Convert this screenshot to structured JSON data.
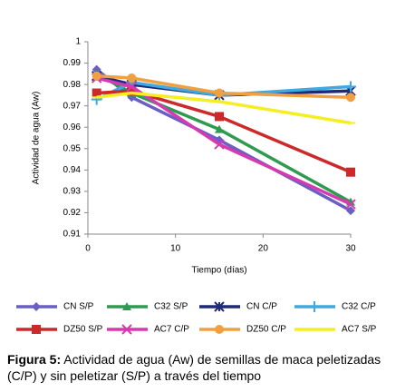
{
  "chart_data": {
    "type": "line",
    "y_label": "Actividad de agua (Aw)",
    "x_label": "Tiempo (días)",
    "x": [
      1,
      5,
      15,
      30
    ],
    "xlim": [
      0,
      30
    ],
    "xticks": [
      0,
      10,
      20,
      30
    ],
    "ylim": [
      0.91,
      1
    ],
    "yticks": [
      0.91,
      0.92,
      0.93,
      0.94,
      0.95,
      0.96,
      0.97,
      0.98,
      0.99,
      1
    ],
    "series": [
      {
        "name": "CN S/P",
        "color": "#6a5fc4",
        "marker": "diamond",
        "values": [
          0.987,
          0.974,
          0.954,
          0.921
        ]
      },
      {
        "name": "C32 S/P",
        "color": "#2e9b4e",
        "marker": "triangle",
        "values": [
          0.985,
          0.976,
          0.959,
          0.925
        ]
      },
      {
        "name": "CN C/P",
        "color": "#1f2a78",
        "marker": "asterisk",
        "values": [
          0.984,
          0.98,
          0.975,
          0.977
        ]
      },
      {
        "name": "C32 C/P",
        "color": "#3fa9e0",
        "marker": "plus",
        "values": [
          0.973,
          0.981,
          0.975,
          0.979
        ]
      },
      {
        "name": "DZ50 S/P",
        "color": "#cc2a2a",
        "marker": "square",
        "values": [
          0.976,
          0.977,
          0.965,
          0.939
        ]
      },
      {
        "name": "AC7 C/P",
        "color": "#d63ab0",
        "marker": "x",
        "values": [
          0.983,
          0.979,
          0.952,
          0.924
        ]
      },
      {
        "name": "DZ50 C/P",
        "color": "#f0a040",
        "marker": "circle",
        "values": [
          0.984,
          0.983,
          0.976,
          0.974
        ]
      },
      {
        "name": "AC7 S/P",
        "color": "#f5ee22",
        "marker": "dash",
        "values": [
          0.974,
          0.976,
          0.972,
          0.962
        ]
      }
    ],
    "caption_label": "Figura 5:",
    "caption": "Actividad de agua (Aw) de semillas de maca peletizadas (C/P) y sin peletizar (S/P) a través del tiempo"
  }
}
